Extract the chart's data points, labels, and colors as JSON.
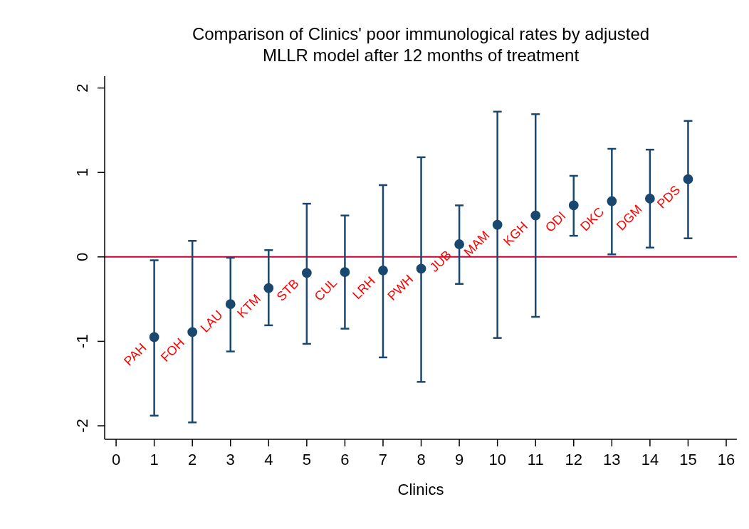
{
  "chart_data": {
    "type": "scatter",
    "title": "Comparison of Clinics' poor immunological rates by adjusted MLLR model after 12 months of treatment",
    "xlabel": "Clinics",
    "x": [
      1,
      2,
      3,
      4,
      5,
      6,
      7,
      8,
      9,
      10,
      11,
      12,
      13,
      14,
      15
    ],
    "series": [
      {
        "color": "#1a476f",
        "values": [
          -0.95,
          -0.89,
          -0.56,
          -0.37,
          -0.19,
          -0.18,
          -0.16,
          -0.14,
          0.15,
          0.38,
          0.49,
          0.61,
          0.66,
          0.69,
          0.92
        ],
        "errors": [
          [
            -1.88,
            -0.04
          ],
          [
            -1.96,
            0.19
          ],
          [
            -1.12,
            -0.01
          ],
          [
            -0.81,
            0.08
          ],
          [
            -1.03,
            0.63
          ],
          [
            -0.85,
            0.49
          ],
          [
            -1.19,
            0.85
          ],
          [
            -1.48,
            1.18
          ],
          [
            -0.32,
            0.61
          ],
          [
            -0.96,
            1.72
          ],
          [
            -0.71,
            1.69
          ],
          [
            0.25,
            0.96
          ],
          [
            0.03,
            1.28
          ],
          [
            0.11,
            1.27
          ],
          [
            0.22,
            1.61
          ]
        ]
      }
    ],
    "annotations": [
      {
        "text": "PAH",
        "x": 1,
        "y": -0.95
      },
      {
        "text": "FOH",
        "x": 2,
        "y": -0.89
      },
      {
        "text": "LAU",
        "x": 3,
        "y": -0.56
      },
      {
        "text": "KTM",
        "x": 4,
        "y": -0.37
      },
      {
        "text": "STB",
        "x": 5,
        "y": -0.19
      },
      {
        "text": "CUL",
        "x": 6,
        "y": -0.18
      },
      {
        "text": "LRH",
        "x": 7,
        "y": -0.16
      },
      {
        "text": "PWH",
        "x": 8,
        "y": -0.14
      },
      {
        "text": "JUB",
        "x": 9,
        "y": 0.15
      },
      {
        "text": "MAM",
        "x": 10,
        "y": 0.38
      },
      {
        "text": "KGH",
        "x": 11,
        "y": 0.49
      },
      {
        "text": "ODI",
        "x": 12,
        "y": 0.61
      },
      {
        "text": "DKC",
        "x": 13,
        "y": 0.66
      },
      {
        "text": "DGM",
        "x": 14,
        "y": 0.69
      },
      {
        "text": "PDS",
        "x": 15,
        "y": 0.92
      }
    ],
    "ref_lines": [
      {
        "axis": "y",
        "value": 0,
        "color": "#c10534"
      }
    ],
    "xlim": [
      -0.3,
      16.28
    ],
    "ylim": [
      -2.16,
      2.14
    ],
    "xticks": [
      0,
      1,
      2,
      3,
      4,
      5,
      6,
      7,
      8,
      9,
      10,
      11,
      12,
      13,
      14,
      15,
      16
    ],
    "yticks": [
      -2,
      -1,
      0,
      1,
      2
    ],
    "marker": "circle",
    "grid": false
  }
}
